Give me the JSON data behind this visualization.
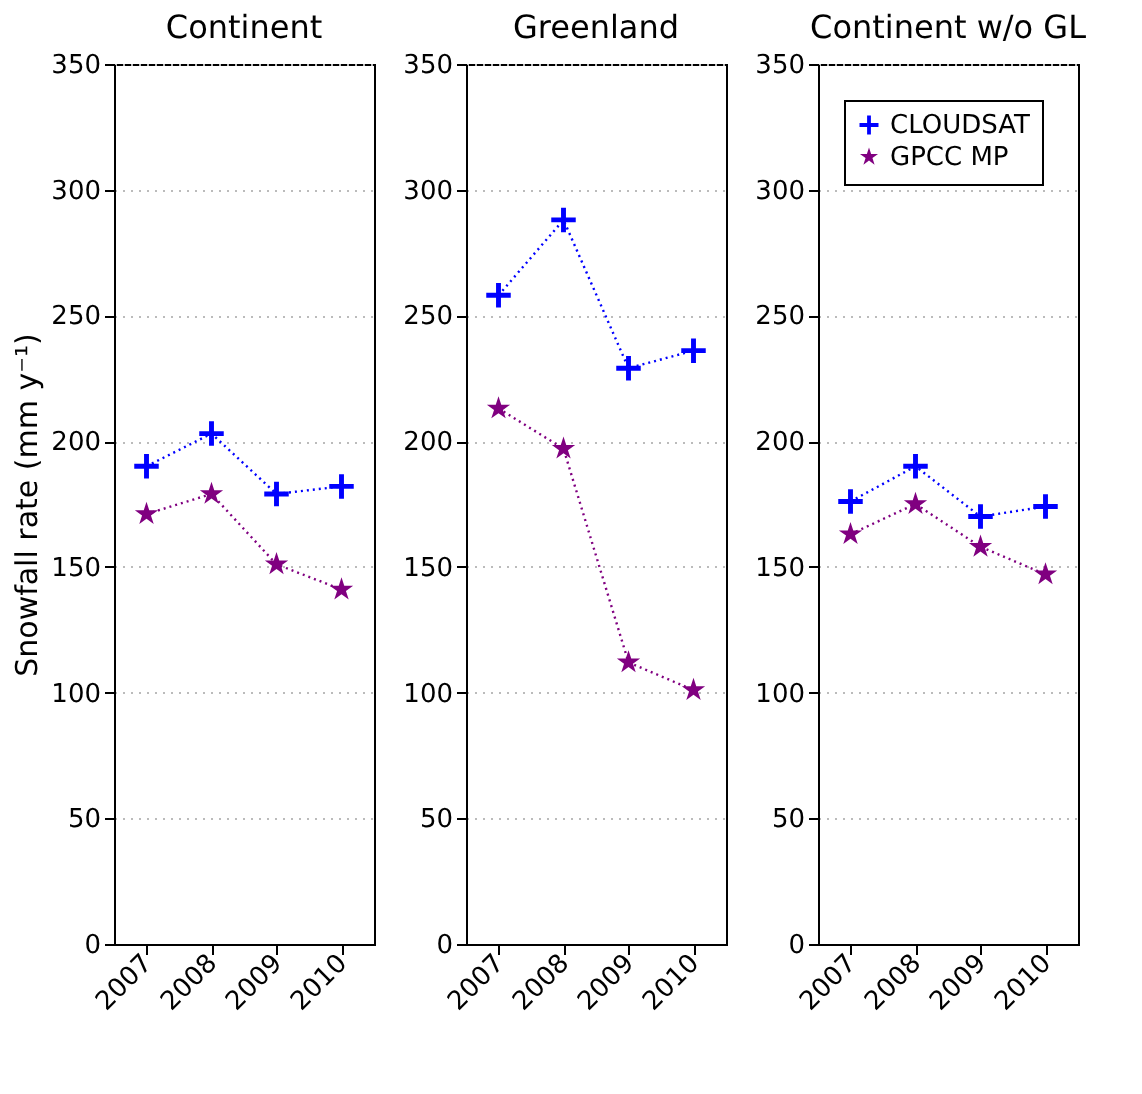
{
  "chart_data": [
    {
      "type": "line",
      "title": "Continent",
      "ylabel": "Snowfall rate (mm y⁻¹)",
      "categories": [
        "2007",
        "2008",
        "2009",
        "2010"
      ],
      "ylim": [
        0,
        350
      ],
      "yticks": [
        0,
        50,
        100,
        150,
        200,
        250,
        300,
        350
      ],
      "grid": "y",
      "line_style": "dotted",
      "series": [
        {
          "color": "#0000ff",
          "marker": "cross",
          "values": [
            190,
            203,
            179,
            182
          ]
        },
        {
          "color": "#800080",
          "marker": "star",
          "values": [
            171,
            179,
            151,
            141
          ]
        }
      ]
    },
    {
      "type": "line",
      "title": "Greenland",
      "categories": [
        "2007",
        "2008",
        "2009",
        "2010"
      ],
      "ylim": [
        0,
        350
      ],
      "yticks": [
        0,
        50,
        100,
        150,
        200,
        250,
        300,
        350
      ],
      "grid": "y",
      "line_style": "dotted",
      "series": [
        {
          "color": "#0000ff",
          "marker": "cross",
          "values": [
            258,
            288,
            229,
            236
          ]
        },
        {
          "color": "#800080",
          "marker": "star",
          "values": [
            213,
            197,
            112,
            101
          ]
        }
      ]
    },
    {
      "type": "line",
      "title": "Continent w/o GL",
      "categories": [
        "2007",
        "2008",
        "2009",
        "2010"
      ],
      "ylim": [
        0,
        350
      ],
      "yticks": [
        0,
        50,
        100,
        150,
        200,
        250,
        300,
        350
      ],
      "grid": "y",
      "line_style": "dotted",
      "legend": "top right",
      "series": [
        {
          "name": "CLOUDSAT",
          "color": "#0000ff",
          "marker": "cross",
          "values": [
            176,
            190,
            170,
            174
          ]
        },
        {
          "name": "GPCC MP",
          "color": "#800080",
          "marker": "star",
          "values": [
            163,
            175,
            158,
            147
          ]
        }
      ]
    }
  ]
}
